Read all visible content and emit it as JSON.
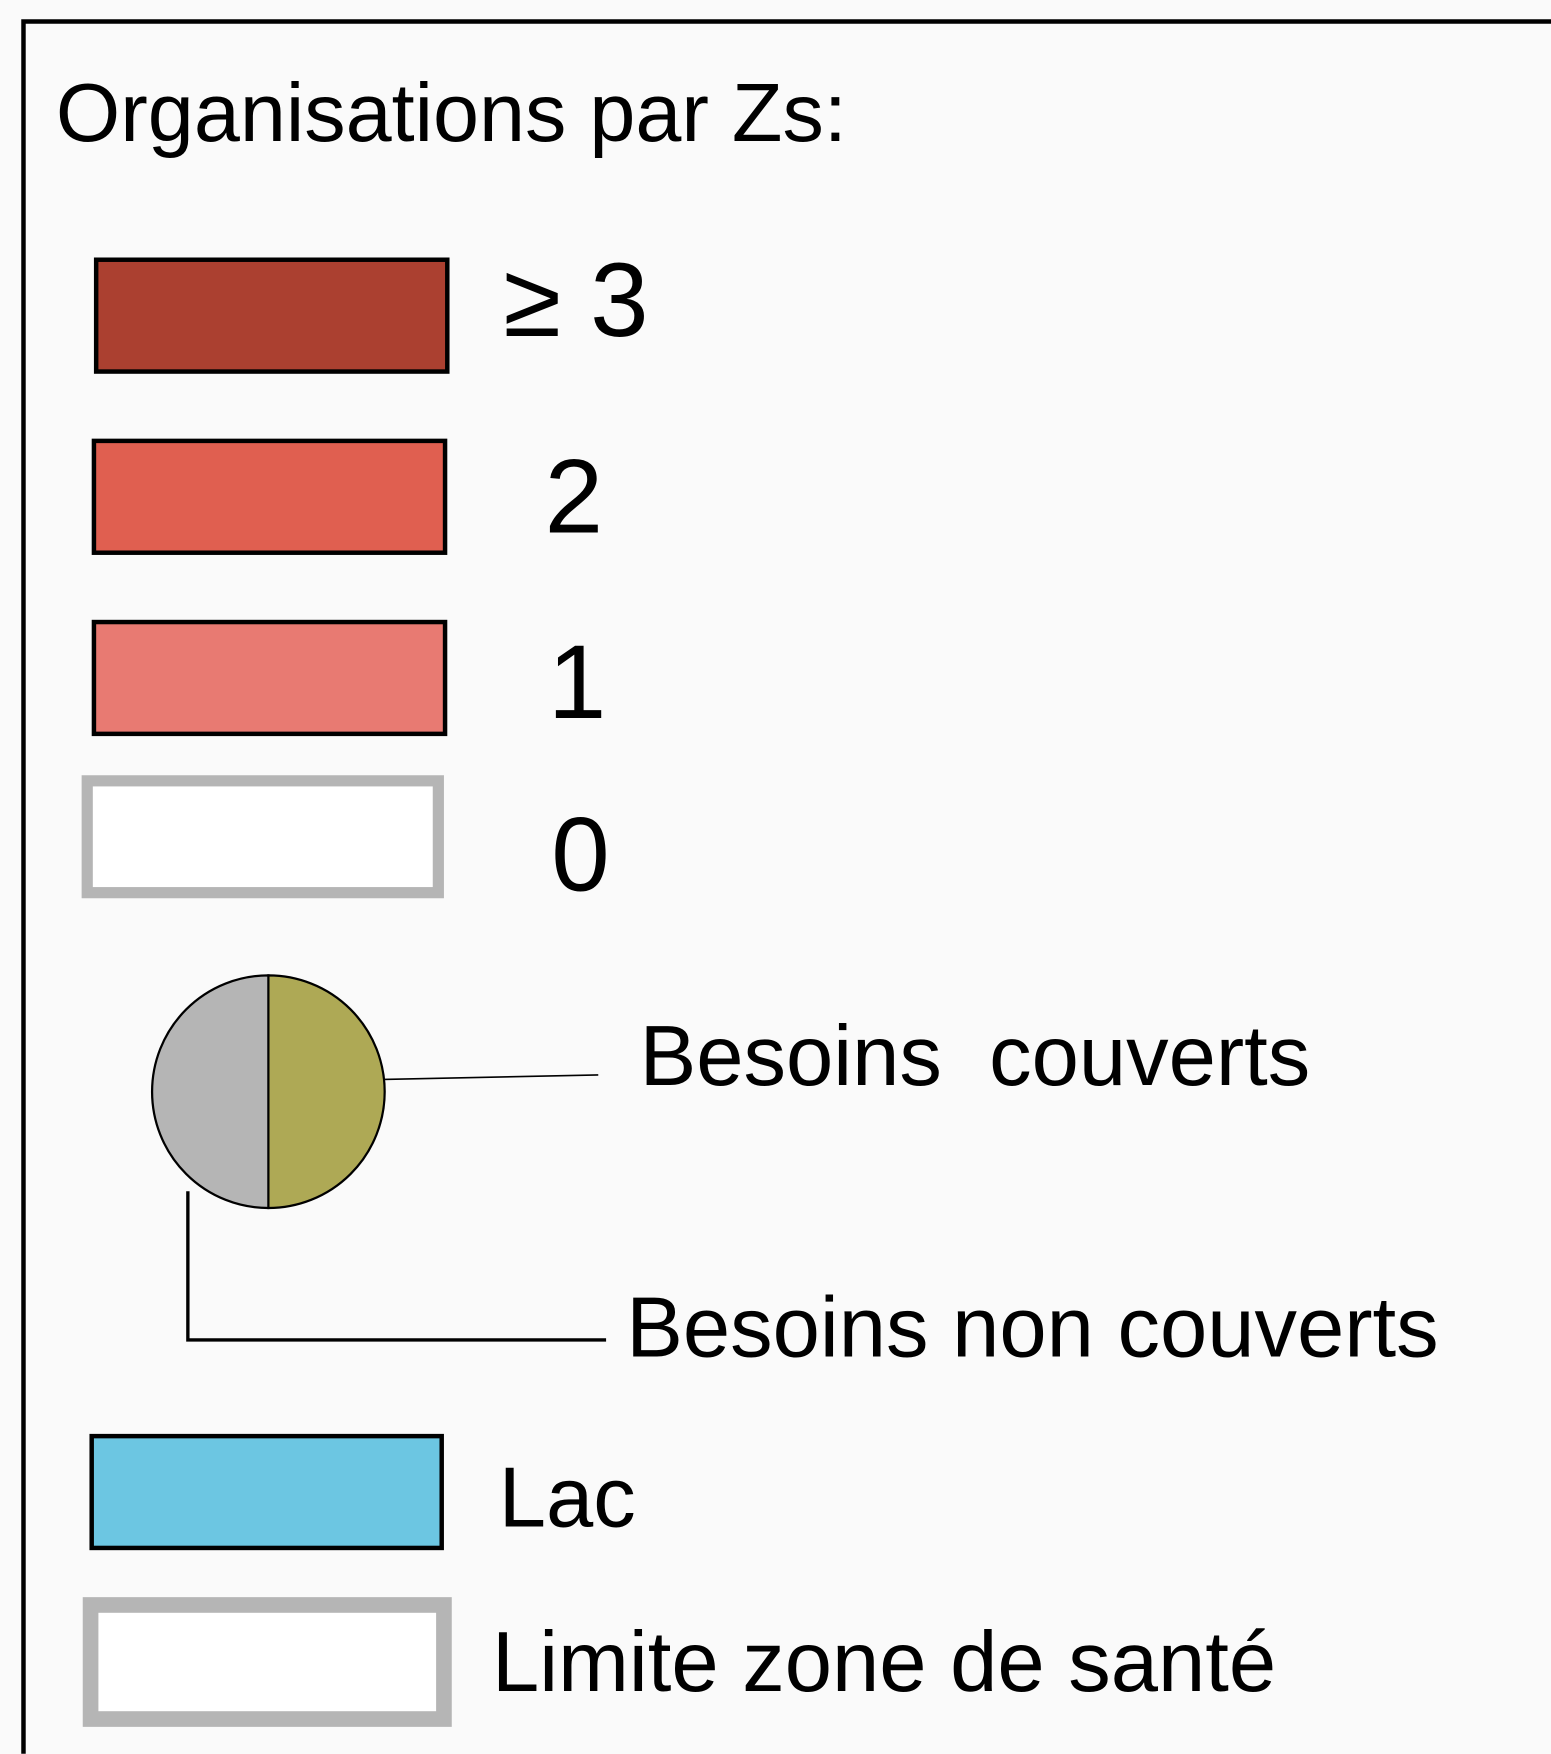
{
  "legend": {
    "title": "Organisations par Zs:",
    "classes": [
      {
        "label": "≥ 3",
        "color": "#ab4030"
      },
      {
        "label": "2",
        "color": "#e05f50"
      },
      {
        "label": "1",
        "color": "#e87a72"
      },
      {
        "label": "0",
        "color": "#ffffff"
      }
    ],
    "pie": [
      {
        "label": "Besoins  couverts",
        "color": "#aea955"
      },
      {
        "label": "Besoins non couverts",
        "color": "#b5b5b5"
      }
    ],
    "lake": {
      "label": "Lac",
      "color": "#6cc6e2"
    },
    "boundary": {
      "label": "Limite zone de santé",
      "color": "#b5b5b5"
    }
  }
}
